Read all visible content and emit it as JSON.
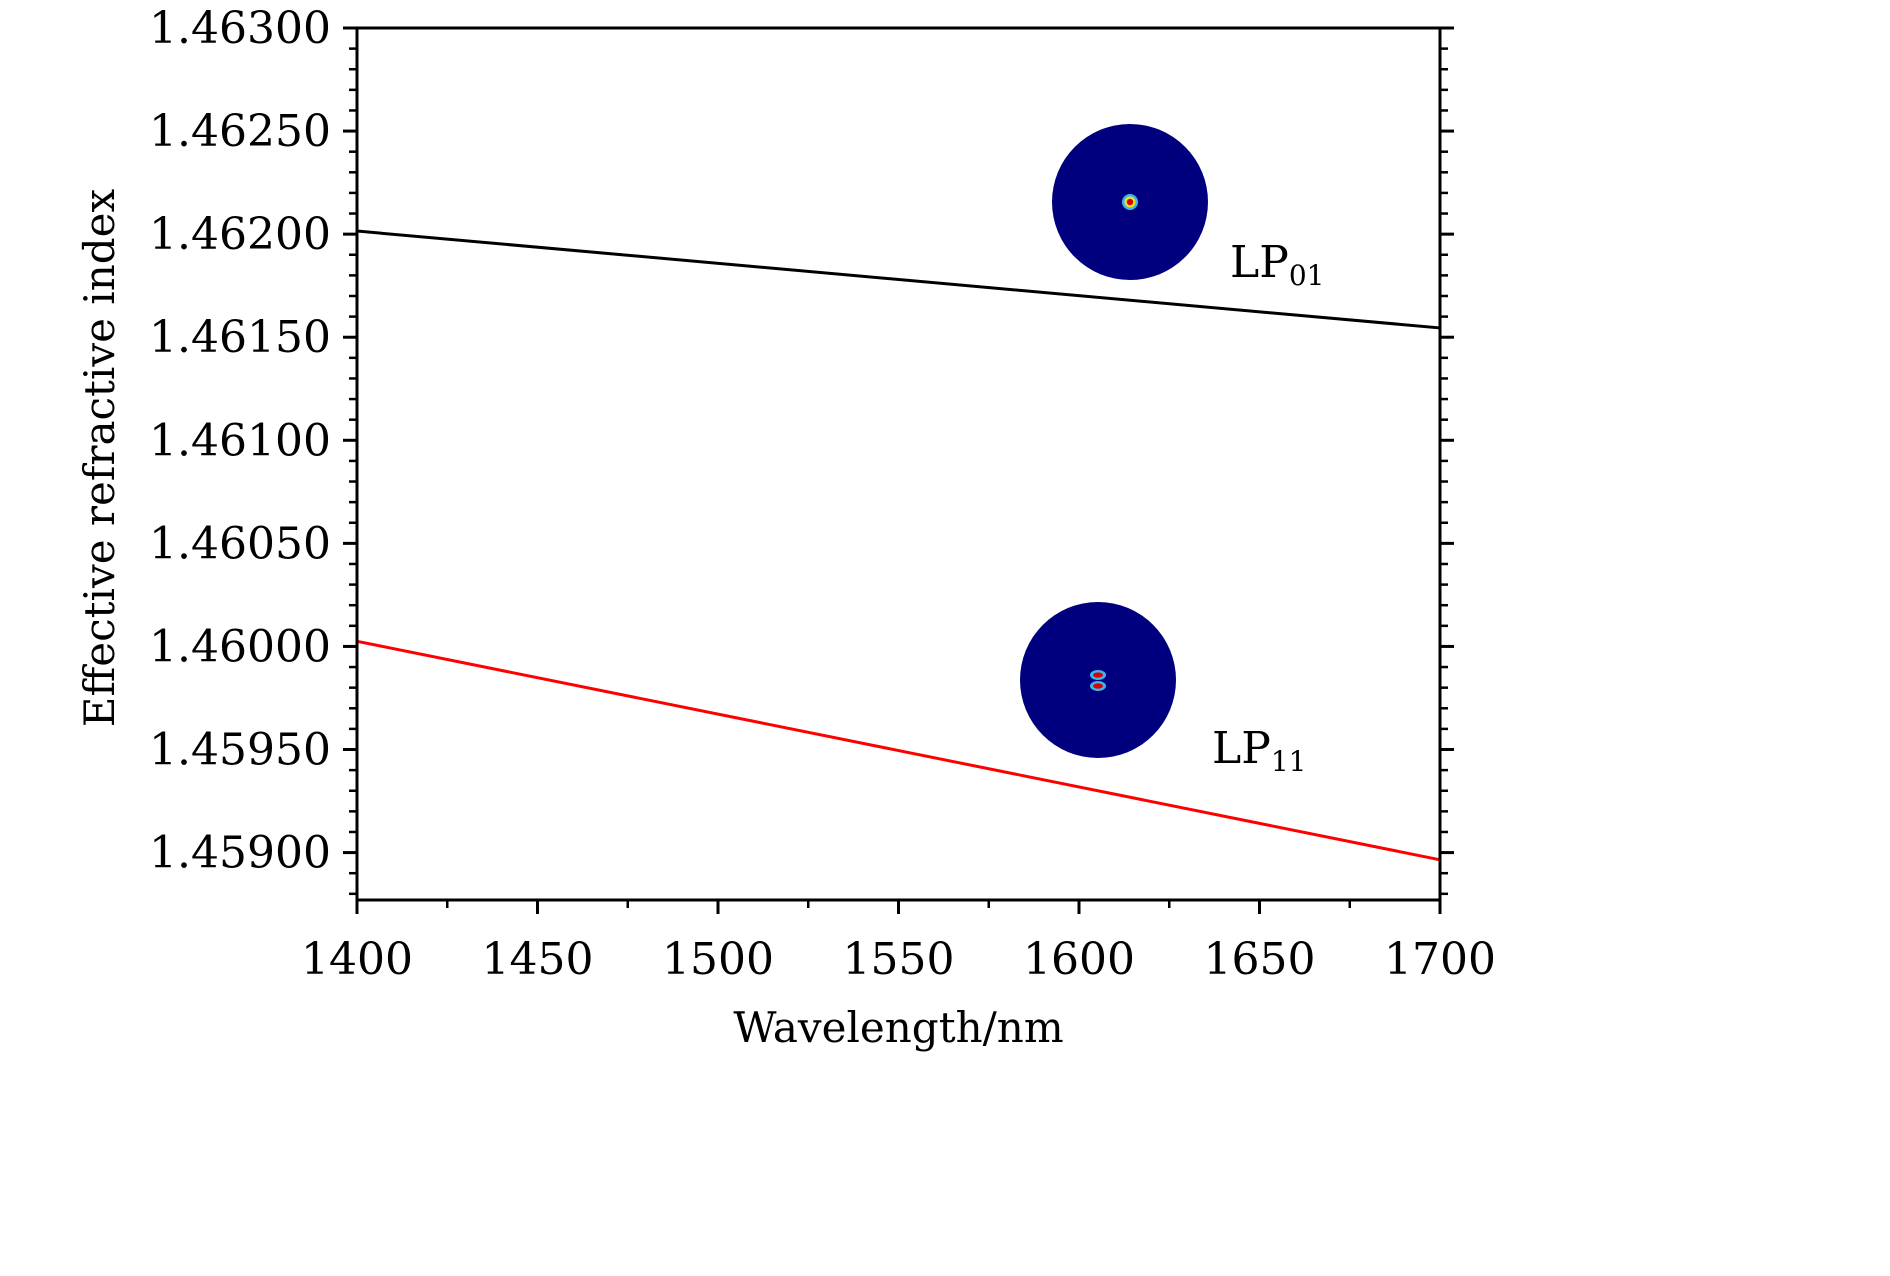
{
  "chart_data": {
    "type": "line",
    "title": "",
    "xlabel": "Wavelength/nm",
    "ylabel": "Effective refractive index",
    "xlim": [
      1400,
      1700
    ],
    "ylim": [
      1.45877,
      1.463
    ],
    "x_ticks": [
      "1400",
      "1450",
      "1500",
      "1550",
      "1600",
      "1650",
      "1700"
    ],
    "y_ticks": [
      "1.45900",
      "1.45950",
      "1.46000",
      "1.46050",
      "1.46100",
      "1.46150",
      "1.46200",
      "1.46250",
      "1.46300"
    ],
    "grid": false,
    "legend": "none",
    "series": [
      {
        "name": "LP01",
        "color": "#000000",
        "x": [
          1400,
          1700
        ],
        "y": [
          1.462015,
          1.461545
        ]
      },
      {
        "name": "LP11",
        "color": "#ff0000",
        "x": [
          1400,
          1700
        ],
        "y": [
          1.460025,
          1.458965
        ]
      }
    ],
    "annotations": [
      {
        "series": "LP01",
        "text_main": "LP",
        "text_sub": "01",
        "mode_pattern": "single-lobe",
        "background_color": "#00007f"
      },
      {
        "series": "LP11",
        "text_main": "LP",
        "text_sub": "11",
        "mode_pattern": "two-lobe",
        "background_color": "#00007f"
      }
    ]
  }
}
